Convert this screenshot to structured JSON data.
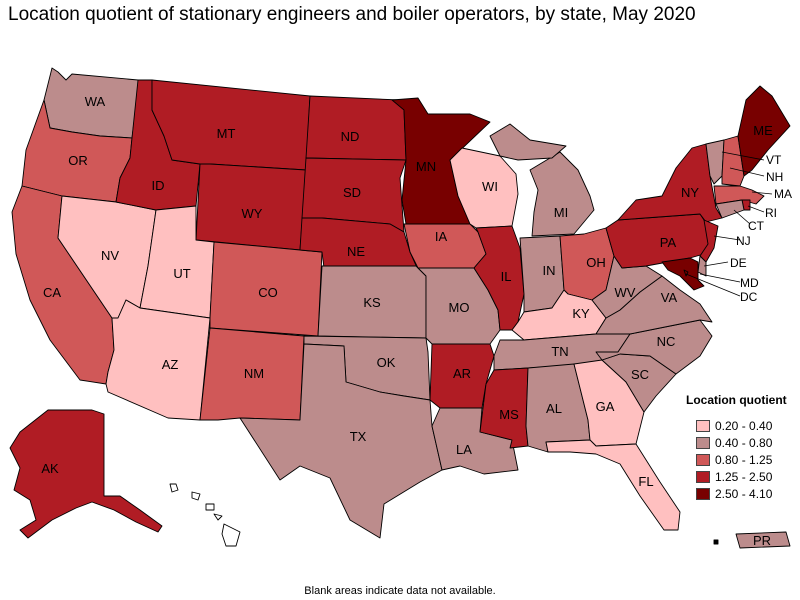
{
  "title": "Location quotient of stationary engineers and boiler operators, by state, May 2020",
  "footnote": "Blank areas indicate data not available.",
  "legend": {
    "title": "Location quotient",
    "items": [
      {
        "label": "0.20 - 0.40",
        "color": "#ffc0c0"
      },
      {
        "label": "0.40 - 0.80",
        "color": "#bc8c8c"
      },
      {
        "label": "0.80 - 1.25",
        "color": "#d05858"
      },
      {
        "label": "1.25 - 2.50",
        "color": "#b01c24"
      },
      {
        "label": "2.50 - 4.10",
        "color": "#780000"
      }
    ]
  },
  "states": {
    "WA": {
      "label": "WA",
      "class": "0.40 - 0.80"
    },
    "OR": {
      "label": "OR",
      "class": "0.80 - 1.25"
    },
    "CA": {
      "label": "CA",
      "class": "0.80 - 1.25"
    },
    "NV": {
      "label": "NV",
      "class": "0.20 - 0.40"
    },
    "ID": {
      "label": "ID",
      "class": "1.25 - 2.50"
    },
    "MT": {
      "label": "MT",
      "class": "1.25 - 2.50"
    },
    "WY": {
      "label": "WY",
      "class": "1.25 - 2.50"
    },
    "UT": {
      "label": "UT",
      "class": "0.20 - 0.40"
    },
    "AZ": {
      "label": "AZ",
      "class": "0.20 - 0.40"
    },
    "CO": {
      "label": "CO",
      "class": "0.80 - 1.25"
    },
    "NM": {
      "label": "NM",
      "class": "0.80 - 1.25"
    },
    "ND": {
      "label": "ND",
      "class": "1.25 - 2.50"
    },
    "SD": {
      "label": "SD",
      "class": "1.25 - 2.50"
    },
    "NE": {
      "label": "NE",
      "class": "1.25 - 2.50"
    },
    "KS": {
      "label": "KS",
      "class": "0.40 - 0.80"
    },
    "OK": {
      "label": "OK",
      "class": "0.40 - 0.80"
    },
    "TX": {
      "label": "TX",
      "class": "0.40 - 0.80"
    },
    "MN": {
      "label": "MN",
      "class": "2.50 - 4.10"
    },
    "IA": {
      "label": "IA",
      "class": "0.80 - 1.25"
    },
    "MO": {
      "label": "MO",
      "class": "0.40 - 0.80"
    },
    "AR": {
      "label": "AR",
      "class": "1.25 - 2.50"
    },
    "LA": {
      "label": "LA",
      "class": "0.40 - 0.80"
    },
    "WI": {
      "label": "WI",
      "class": "0.20 - 0.40"
    },
    "IL": {
      "label": "IL",
      "class": "1.25 - 2.50"
    },
    "MI": {
      "label": "MI",
      "class": "0.40 - 0.80"
    },
    "IN": {
      "label": "IN",
      "class": "0.40 - 0.80"
    },
    "OH": {
      "label": "OH",
      "class": "0.80 - 1.25"
    },
    "KY": {
      "label": "KY",
      "class": "0.20 - 0.40"
    },
    "TN": {
      "label": "TN",
      "class": "0.40 - 0.80"
    },
    "MS": {
      "label": "MS",
      "class": "1.25 - 2.50"
    },
    "AL": {
      "label": "AL",
      "class": "0.40 - 0.80"
    },
    "GA": {
      "label": "GA",
      "class": "0.20 - 0.40"
    },
    "FL": {
      "label": "FL",
      "class": "0.20 - 0.40"
    },
    "SC": {
      "label": "SC",
      "class": "0.40 - 0.80"
    },
    "NC": {
      "label": "NC",
      "class": "0.40 - 0.80"
    },
    "VA": {
      "label": "VA",
      "class": "0.40 - 0.80"
    },
    "WV": {
      "label": "WV",
      "class": "0.40 - 0.80"
    },
    "PA": {
      "label": "PA",
      "class": "1.25 - 2.50"
    },
    "NY": {
      "label": "NY",
      "class": "1.25 - 2.50"
    },
    "ME": {
      "label": "ME",
      "class": "2.50 - 4.10"
    },
    "VT": {
      "label": "VT",
      "class": "0.40 - 0.80"
    },
    "NH": {
      "label": "NH",
      "class": "0.80 - 1.25"
    },
    "MA": {
      "label": "MA",
      "class": "0.80 - 1.25"
    },
    "RI": {
      "label": "RI",
      "class": "1.25 - 2.50"
    },
    "CT": {
      "label": "CT",
      "class": "0.40 - 0.80"
    },
    "NJ": {
      "label": "NJ",
      "class": "1.25 - 2.50"
    },
    "DE": {
      "label": "DE",
      "class": "0.40 - 0.80"
    },
    "MD": {
      "label": "MD",
      "class": "2.50 - 4.10"
    },
    "DC": {
      "label": "DC",
      "class": "2.50 - 4.10"
    },
    "AK": {
      "label": "AK",
      "class": "1.25 - 2.50"
    },
    "HI": {
      "label": "",
      "class": "none"
    },
    "PR": {
      "label": "PR",
      "class": "0.40 - 0.80"
    }
  }
}
